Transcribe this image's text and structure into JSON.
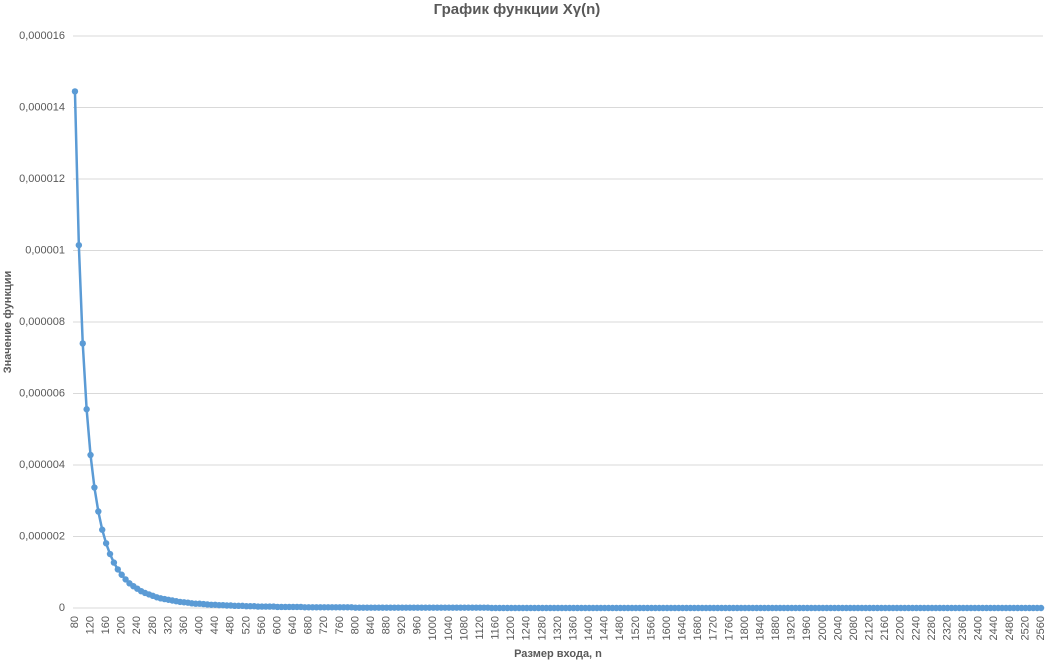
{
  "chart_data": {
    "type": "line",
    "title": "График функции Xγ(n)",
    "x_label": "Размер входа, n",
    "y_label": "Значение функции",
    "categories": [
      "80",
      null,
      null,
      null,
      "120",
      null,
      null,
      null,
      "160",
      null,
      null,
      null,
      "200",
      null,
      null,
      null,
      "240",
      null,
      null,
      null,
      "280",
      null,
      null,
      null,
      "320",
      null,
      null,
      null,
      "360",
      null,
      null,
      null,
      "400",
      null,
      null,
      null,
      "440",
      null,
      null,
      null,
      "480",
      null,
      null,
      null,
      "520",
      null,
      null,
      null,
      "560",
      null,
      null,
      null,
      "600",
      null,
      null,
      null,
      "640",
      null,
      null,
      null,
      "680",
      null,
      null,
      null,
      "720",
      null,
      null,
      null,
      "760",
      null,
      null,
      null,
      "800",
      null,
      null,
      null,
      "840",
      null,
      null,
      null,
      "880",
      null,
      null,
      null,
      "920",
      null,
      null,
      null,
      "960",
      null,
      null,
      null,
      "1000",
      null,
      null,
      null,
      "1040",
      null,
      null,
      null,
      "1080",
      null,
      null,
      null,
      "1120",
      null,
      null,
      null,
      "1160",
      null,
      null,
      null,
      "1200",
      null,
      null,
      null,
      "1240",
      null,
      null,
      null,
      "1280",
      null,
      null,
      null,
      "1320",
      null,
      null,
      null,
      "1360",
      null,
      null,
      null,
      "1400",
      null,
      null,
      null,
      "1440",
      null,
      null,
      null,
      "1480",
      null,
      null,
      null,
      "1520",
      null,
      null,
      null,
      "1560",
      null,
      null,
      null,
      "1600",
      null,
      null,
      null,
      "1640",
      null,
      null,
      null,
      "1680",
      null,
      null,
      null,
      "1720",
      null,
      null,
      null,
      "1760",
      null,
      null,
      null,
      "1800",
      null,
      null,
      null,
      "1840",
      null,
      null,
      null,
      "1880",
      null,
      null,
      null,
      "1920",
      null,
      null,
      null,
      "1960",
      null,
      null,
      null,
      "2000",
      null,
      null,
      null,
      "2040",
      null,
      null,
      null,
      "2080",
      null,
      null,
      null,
      "2120",
      null,
      null,
      null,
      "2160",
      null,
      null,
      null,
      "2200",
      null,
      null,
      null,
      "2240",
      null,
      null,
      null,
      "2280",
      null,
      null,
      null,
      "2320",
      null,
      null,
      null,
      "2360",
      null,
      null,
      null,
      "2400",
      null,
      null,
      null,
      "2440",
      null,
      null,
      null,
      "2480",
      null,
      null,
      null,
      "2520",
      null,
      null,
      null,
      "2560"
    ],
    "series": [
      {
        "color": "#5b9bd5",
        "values": [
          1.445e-05,
          1.015e-05,
          7.4e-06,
          5.56e-06,
          4.28e-06,
          3.37e-06,
          2.7e-06,
          2.19e-06,
          1.81e-06,
          1.51e-06,
          1.27e-06,
          1.08e-06,
          9.3e-07,
          8e-07,
          6.9e-07,
          6.1e-07,
          5.4e-07,
          4.7e-07,
          4.2e-07,
          3.8e-07,
          3.4e-07,
          3e-07,
          2.7e-07,
          2.5e-07,
          2.3e-07,
          2.1e-07,
          1.9e-07,
          1.7e-07,
          1.6e-07,
          1.5e-07,
          1.3e-07,
          1.2e-07,
          1.2e-07,
          1.1e-07,
          1e-07,
          9e-08,
          9e-08,
          8e-08,
          8e-08,
          7e-08,
          7e-08,
          6e-08,
          6e-08,
          6e-08,
          5e-08,
          5e-08,
          5e-08,
          4e-08,
          4e-08,
          4e-08,
          4e-08,
          4e-08,
          3e-08,
          3e-08,
          3e-08,
          3e-08,
          3e-08,
          3e-08,
          3e-08,
          2e-08,
          2e-08,
          2e-08,
          2e-08,
          2e-08,
          2e-08,
          2e-08,
          2e-08,
          2e-08,
          2e-08,
          2e-08,
          2e-08,
          2e-08,
          1e-08,
          1e-08,
          1e-08,
          1e-08,
          1e-08,
          1e-08,
          1e-08,
          1e-08,
          1e-08,
          1e-08,
          1e-08,
          1e-08,
          1e-08,
          1e-08,
          1e-08,
          1e-08,
          1e-08,
          1e-08,
          1e-08,
          1e-08,
          1e-08,
          1e-08,
          1e-08,
          1e-08,
          1e-08,
          1e-08,
          1e-08,
          1e-08,
          1e-08,
          1e-08,
          1e-08,
          1e-08,
          1e-08,
          1e-08,
          1e-08,
          0,
          0,
          0,
          0,
          0,
          0,
          0,
          0,
          0,
          0,
          0,
          0,
          0,
          0,
          0,
          0,
          0,
          0,
          0,
          0,
          0,
          0,
          0,
          0,
          0,
          0,
          0,
          0,
          0,
          0,
          0,
          0,
          0,
          0,
          0,
          0,
          0,
          0,
          0,
          0,
          0,
          0,
          0,
          0,
          0,
          0,
          0,
          0,
          0,
          0,
          0,
          0,
          0,
          0,
          0,
          0,
          0,
          0,
          0,
          0,
          0,
          0,
          0,
          0,
          0,
          0,
          0,
          0,
          0,
          0,
          0,
          0,
          0,
          0,
          0,
          0,
          0,
          0,
          0,
          0,
          0,
          0,
          0,
          0,
          0,
          0,
          0,
          0,
          0,
          0,
          0,
          0,
          0,
          0,
          0,
          0,
          0,
          0,
          0,
          0,
          0,
          0,
          0,
          0,
          0,
          0,
          0,
          0,
          0,
          0,
          0,
          0,
          0,
          0,
          0,
          0,
          0,
          0,
          0,
          0,
          0,
          0,
          0,
          0,
          0,
          0,
          0,
          0,
          0,
          0,
          0,
          0,
          0,
          0,
          0,
          0,
          0,
          0,
          0,
          0,
          0,
          0
        ]
      }
    ],
    "ylim": [
      0,
      1.6e-05
    ],
    "yticks": [
      0,
      {
        "value": 2e-06,
        "label": "0,000002"
      },
      {
        "value": 4e-06,
        "label": "0,000004"
      },
      {
        "value": 6e-06,
        "label": "0,000006"
      },
      {
        "value": 8e-06,
        "label": "0,000008"
      },
      {
        "value": 1e-05,
        "label": "0,00001"
      },
      {
        "value": 1.2e-05,
        "label": "0,000012"
      },
      {
        "value": 1.4e-05,
        "label": "0,000014"
      },
      {
        "value": 1.6e-05,
        "label": "0,000016"
      }
    ],
    "grid": true
  }
}
